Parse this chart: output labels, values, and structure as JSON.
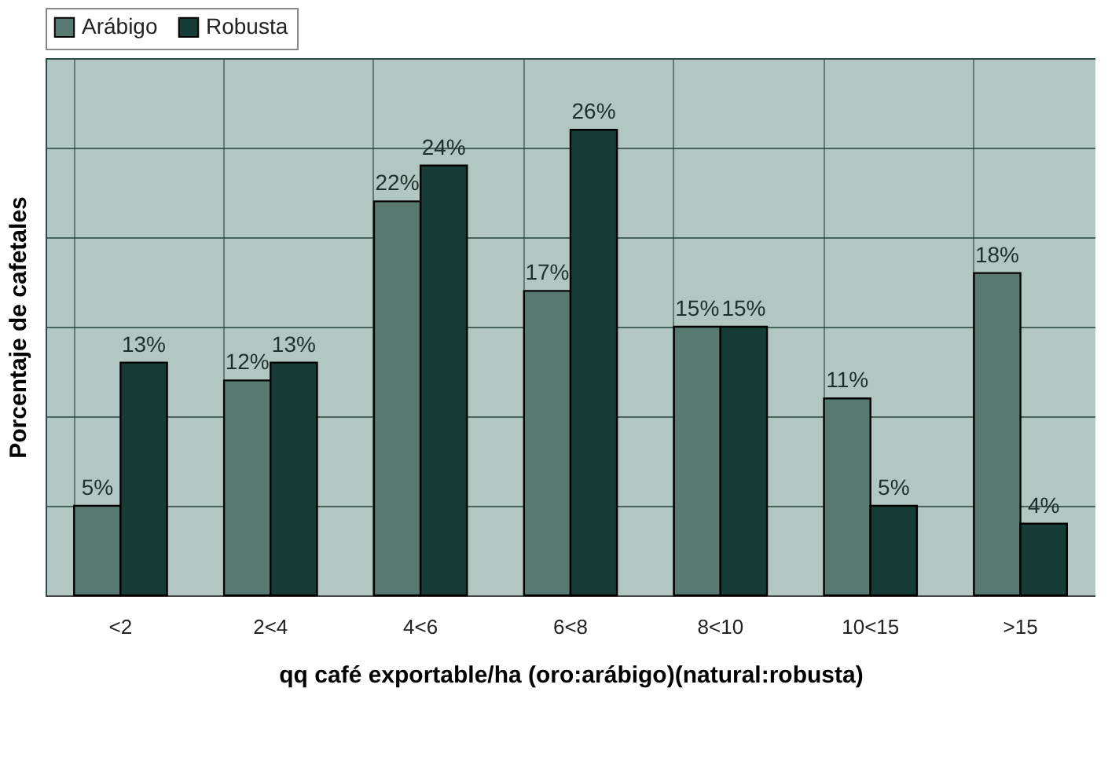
{
  "chart_data": {
    "type": "bar",
    "xlabel": "qq café exportable/ha (oro:arábigo)(natural:robusta)",
    "ylabel": "Porcentaje de cafetales",
    "categories": [
      "<2",
      "2<4",
      "4<6",
      "6<8",
      "8<10",
      "10<15",
      ">15"
    ],
    "series": [
      {
        "name": "Arábigo",
        "color": "#587a73",
        "values": [
          5,
          12,
          22,
          17,
          15,
          11,
          18
        ],
        "value_labels": [
          "5%",
          "12%",
          "22%",
          "17%",
          "15%",
          "11%",
          "18%"
        ]
      },
      {
        "name": "Robusta",
        "color": "#173b36",
        "values": [
          13,
          13,
          24,
          26,
          15,
          5,
          4
        ],
        "value_labels": [
          "13%",
          "13%",
          "24%",
          "26%",
          "15%",
          "5%",
          "4%"
        ]
      }
    ],
    "ylim": [
      0,
      30
    ],
    "yticks": [
      {
        "value": 0,
        "label": null
      },
      {
        "value": 5,
        "label": null
      },
      {
        "value": 10,
        "label": null
      },
      {
        "value": 15,
        "label": null
      },
      {
        "value": 20,
        "label": null
      },
      {
        "value": 25,
        "label": null
      },
      {
        "value": 30,
        "label": null
      }
    ],
    "tick_labels": "x",
    "grid": true,
    "legend": "top"
  }
}
